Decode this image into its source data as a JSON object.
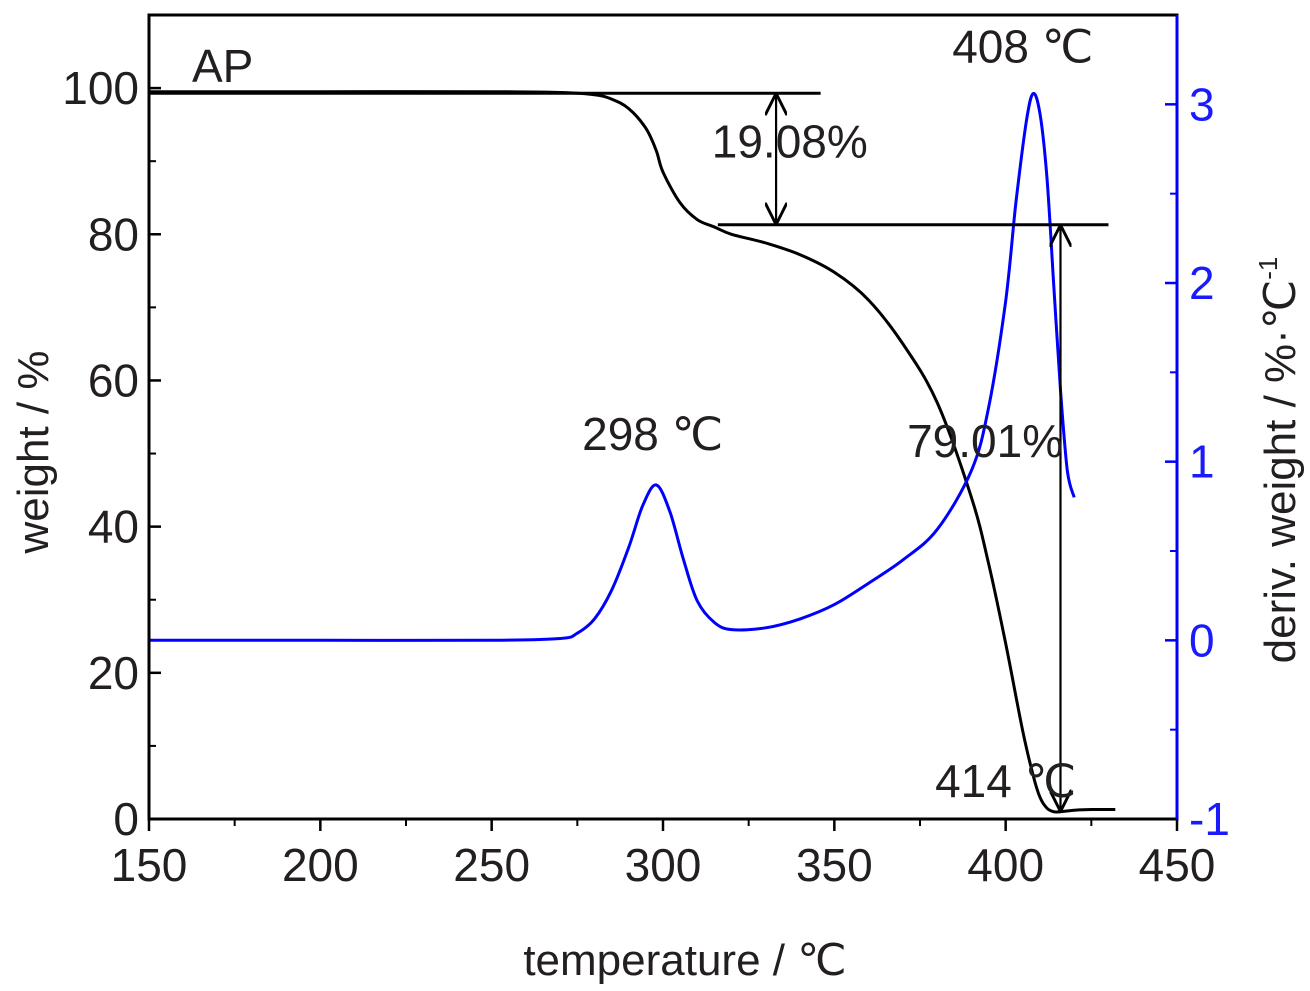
{
  "chart_data": {
    "type": "line",
    "panel_label": "AP",
    "xlabel": "temperature / ℃",
    "ylabel_left": "weight / %",
    "ylabel_right": "deriv. weight / %·℃",
    "ylabel_right_sup": "-1",
    "xlim": [
      150,
      450
    ],
    "ylim_left": [
      0,
      110
    ],
    "ylim_right": [
      -1,
      3.5
    ],
    "x_ticks": [
      150,
      200,
      250,
      300,
      350,
      400,
      450
    ],
    "x_tick_labels": [
      "150",
      "200",
      "250",
      "300",
      "350",
      "400",
      "450"
    ],
    "y_left_ticks": [
      0,
      20,
      40,
      60,
      80,
      100
    ],
    "y_left_tick_labels": [
      "0",
      "20",
      "40",
      "60",
      "80",
      "100"
    ],
    "y_right_ticks": [
      -1,
      0,
      1,
      2,
      3
    ],
    "y_right_tick_labels": [
      "-1",
      "0",
      "1",
      "2",
      "3"
    ],
    "series": [
      {
        "axis": "left",
        "color": "#000000",
        "x": [
          150,
          200,
          250,
          270,
          280,
          285,
          290,
          295,
          298,
          300,
          305,
          310,
          315,
          320,
          330,
          340,
          350,
          360,
          370,
          380,
          390,
          395,
          400,
          405,
          408,
          410,
          412,
          414,
          416,
          420,
          425,
          432
        ],
        "y": [
          99.5,
          99.5,
          99.5,
          99.4,
          99.1,
          98.5,
          97.2,
          94.5,
          91.5,
          88.5,
          84.3,
          82.0,
          81.0,
          80.0,
          78.8,
          77.2,
          74.8,
          71.0,
          65.0,
          57.0,
          44.0,
          35.0,
          24.0,
          12.0,
          6.0,
          3.0,
          1.5,
          1.0,
          1.0,
          1.2,
          1.3,
          1.3
        ]
      },
      {
        "axis": "right",
        "color": "#0000ff",
        "x": [
          150,
          200,
          250,
          270,
          275,
          280,
          285,
          290,
          294,
          298,
          302,
          306,
          310,
          315,
          320,
          330,
          340,
          350,
          360,
          370,
          380,
          390,
          395,
          400,
          403,
          406,
          408,
          410,
          412,
          414,
          416,
          418,
          420
        ],
        "y": [
          0.0,
          0.0,
          0.0,
          0.01,
          0.04,
          0.12,
          0.28,
          0.52,
          0.75,
          0.87,
          0.72,
          0.45,
          0.22,
          0.1,
          0.06,
          0.07,
          0.12,
          0.2,
          0.32,
          0.45,
          0.62,
          0.95,
          1.3,
          1.9,
          2.45,
          2.9,
          3.06,
          2.95,
          2.6,
          2.0,
          1.4,
          0.95,
          0.8
        ]
      }
    ],
    "annotations": [
      {
        "text": "19.08%",
        "x": 337,
        "y": 90.5
      },
      {
        "text": "79.01%",
        "x": 394,
        "y": 49.5
      },
      {
        "text": "298 ℃",
        "x": 297,
        "y": 50.5
      },
      {
        "text": "408 ℃",
        "x": 405,
        "y": 103.5
      },
      {
        "text": "414 ℃",
        "x": 400,
        "y": 3
      }
    ],
    "guide_lines": [
      {
        "x1": 150,
        "x2": 346,
        "y": 99.3
      },
      {
        "x1": 316,
        "x2": 430,
        "y": 81.3
      }
    ],
    "double_arrows": [
      {
        "x": 333,
        "y1": 99.3,
        "y2": 81.3
      },
      {
        "x": 416,
        "y1": 81.3,
        "y2": 1.0
      }
    ]
  }
}
